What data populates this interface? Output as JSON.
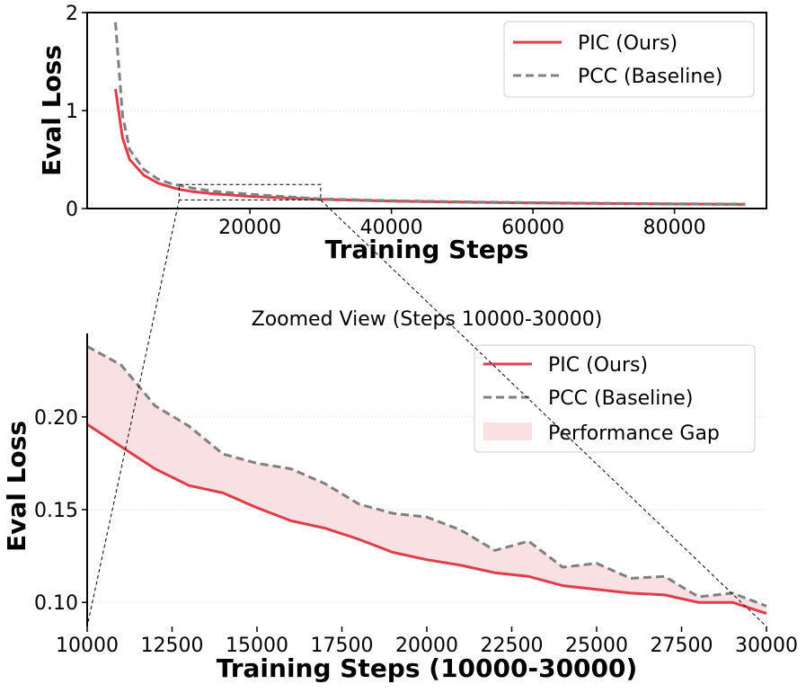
{
  "chart_data": [
    {
      "type": "line",
      "title": "",
      "xlabel": "Training Steps",
      "ylabel": "Eval Loss",
      "xlim": [
        -3000,
        93000
      ],
      "ylim": [
        0,
        2
      ],
      "xticks": [
        20000,
        40000,
        60000,
        80000
      ],
      "xtick_labels": [
        "20000",
        "40000",
        "60000",
        "80000"
      ],
      "yticks": [
        0,
        1,
        2
      ],
      "ytick_labels": [
        "0",
        "1",
        "2"
      ],
      "grid": true,
      "legend_position": "top-right",
      "series": [
        {
          "name": "PIC (Ours)",
          "color": "#e03c4a",
          "style": "solid",
          "x": [
            1000,
            2000,
            3000,
            5000,
            7000,
            9000,
            10000,
            12000,
            15000,
            20000,
            25000,
            30000,
            40000,
            50000,
            60000,
            70000,
            80000,
            90000
          ],
          "y": [
            1.22,
            0.72,
            0.5,
            0.34,
            0.26,
            0.215,
            0.196,
            0.172,
            0.15,
            0.124,
            0.107,
            0.094,
            0.075,
            0.065,
            0.057,
            0.051,
            0.046,
            0.042
          ]
        },
        {
          "name": "PCC (Baseline)",
          "color": "#808080",
          "style": "dashed",
          "x": [
            1000,
            2000,
            3000,
            5000,
            7000,
            9000,
            10000,
            12000,
            15000,
            20000,
            25000,
            30000,
            40000,
            50000,
            60000,
            70000,
            80000,
            90000
          ],
          "y": [
            1.9,
            0.95,
            0.6,
            0.4,
            0.3,
            0.25,
            0.238,
            0.206,
            0.175,
            0.146,
            0.121,
            0.098,
            0.08,
            0.069,
            0.06,
            0.054,
            0.049,
            0.045
          ]
        }
      ]
    },
    {
      "type": "line",
      "title": "Zoomed View (Steps 10000-30000)",
      "xlabel": "Training Steps (10000-30000)",
      "ylabel": "Eval Loss",
      "xlim": [
        10000,
        30000
      ],
      "ylim": [
        0.087,
        0.245
      ],
      "xticks": [
        10000,
        12500,
        15000,
        17500,
        20000,
        22500,
        25000,
        27500,
        30000
      ],
      "xtick_labels": [
        "10000",
        "12500",
        "15000",
        "17500",
        "20000",
        "22500",
        "25000",
        "27500",
        "30000"
      ],
      "yticks": [
        0.1,
        0.15,
        0.2
      ],
      "ytick_labels": [
        "0.10",
        "0.15",
        "0.20"
      ],
      "grid": true,
      "legend_position": "top-right",
      "x": [
        10000,
        11000,
        12000,
        13000,
        14000,
        15000,
        16000,
        17000,
        18000,
        19000,
        20000,
        21000,
        22000,
        23000,
        24000,
        25000,
        26000,
        27000,
        28000,
        29000,
        30000
      ],
      "series": [
        {
          "name": "PIC (Ours)",
          "color": "#e03c4a",
          "style": "solid",
          "values": [
            0.196,
            0.184,
            0.172,
            0.163,
            0.159,
            0.151,
            0.144,
            0.14,
            0.134,
            0.127,
            0.123,
            0.12,
            0.116,
            0.114,
            0.109,
            0.107,
            0.105,
            0.104,
            0.1,
            0.1,
            0.094
          ]
        },
        {
          "name": "PCC (Baseline)",
          "color": "#808080",
          "style": "dashed",
          "values": [
            0.238,
            0.228,
            0.206,
            0.195,
            0.18,
            0.175,
            0.172,
            0.164,
            0.153,
            0.148,
            0.146,
            0.139,
            0.128,
            0.133,
            0.119,
            0.121,
            0.113,
            0.114,
            0.103,
            0.105,
            0.098
          ]
        }
      ],
      "fill_between": {
        "name": "Performance Gap",
        "color": "#f9e0e3"
      }
    }
  ]
}
